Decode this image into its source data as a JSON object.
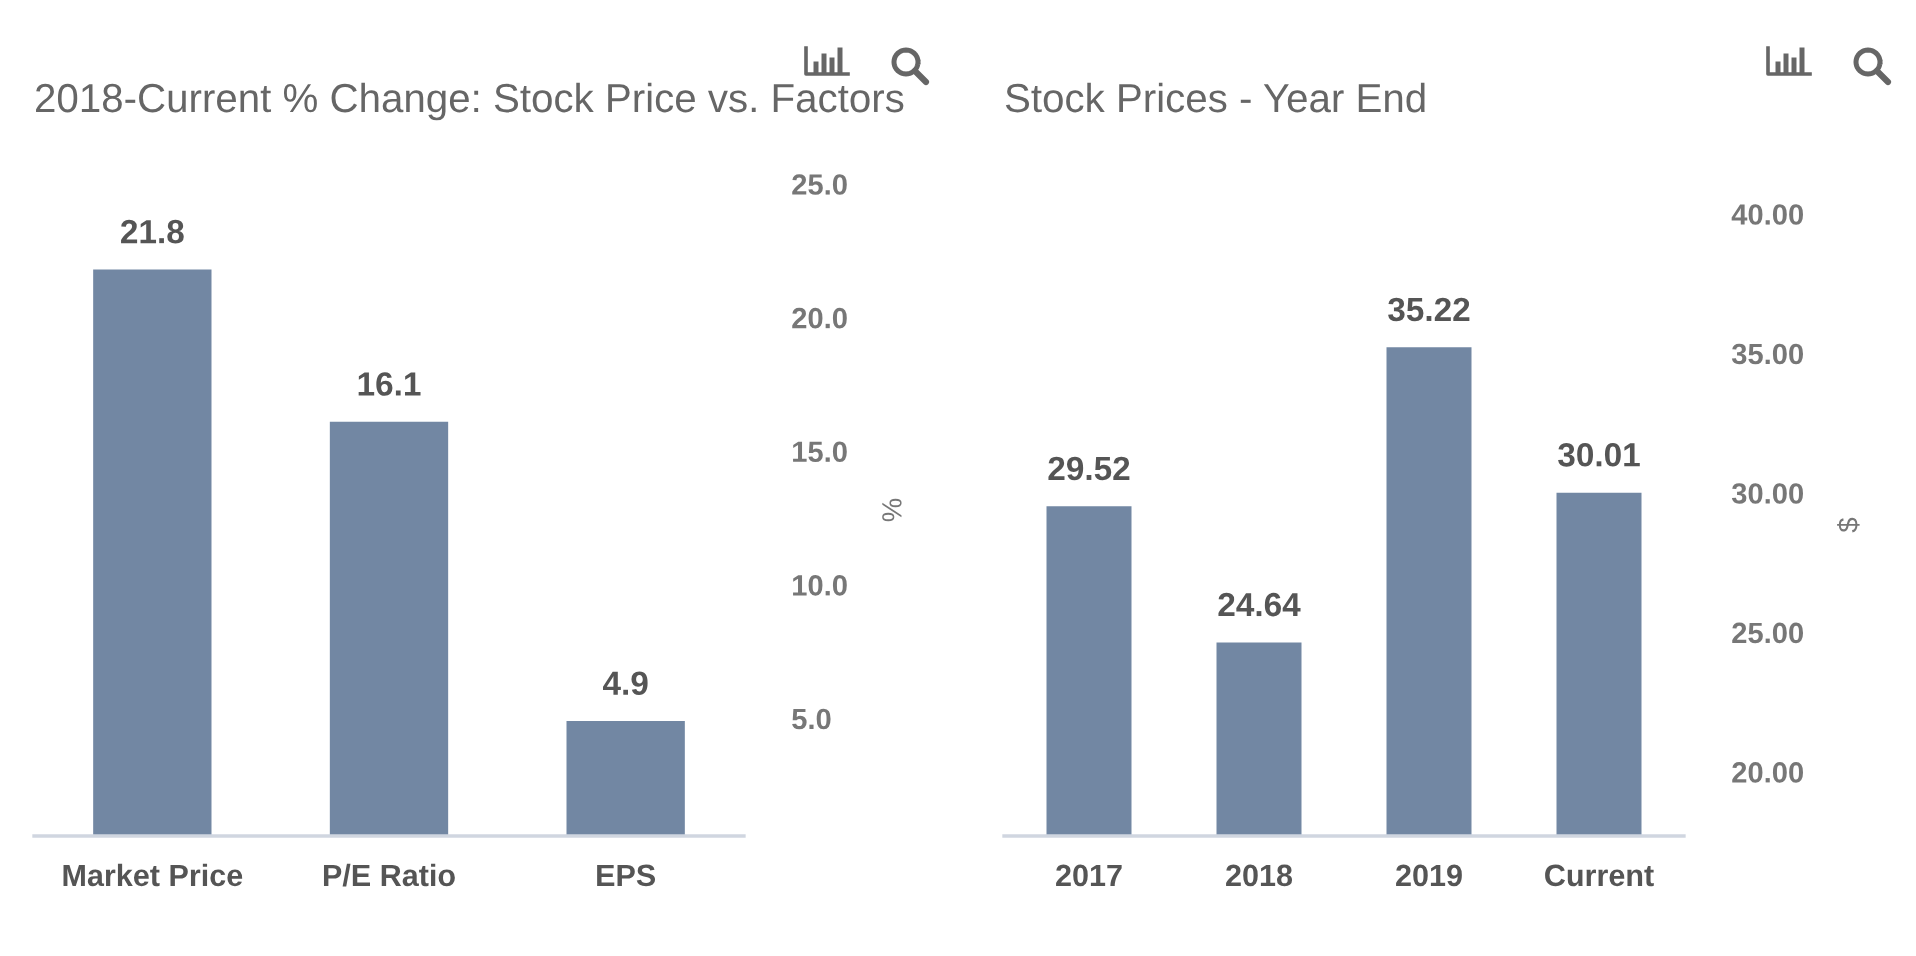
{
  "chart_data": [
    {
      "type": "bar",
      "title": "2018-Current % Change: Stock Price vs. Factors",
      "categories": [
        "Market Price",
        "P/E Ratio",
        "EPS"
      ],
      "values": [
        21.8,
        16.1,
        4.9
      ],
      "color": "#7287a3",
      "ylim": [
        0.6,
        25
      ],
      "yticks": [
        {
          "value": 5,
          "label": "5.0"
        },
        {
          "value": 10,
          "label": "10.0"
        },
        {
          "value": 15,
          "label": "15.0"
        },
        {
          "value": 20,
          "label": "20.0"
        },
        {
          "value": 25,
          "label": "25.0"
        }
      ],
      "ylabel": "%",
      "data_labels": true
    },
    {
      "type": "bar",
      "title": "Stock Prices - Year End",
      "categories": [
        "2017",
        "2018",
        "2019",
        "Current"
      ],
      "values": [
        29.52,
        24.64,
        35.22,
        30.01
      ],
      "color": "#7287a3",
      "ylim": [
        17.7,
        40
      ],
      "yticks": [
        {
          "value": 20,
          "label": "20.00"
        },
        {
          "value": 25,
          "label": "25.00"
        },
        {
          "value": 30,
          "label": "30.00"
        },
        {
          "value": 35,
          "label": "35.00"
        },
        {
          "value": 40,
          "label": "40.00"
        }
      ],
      "ylabel": "$",
      "data_labels": true
    }
  ]
}
